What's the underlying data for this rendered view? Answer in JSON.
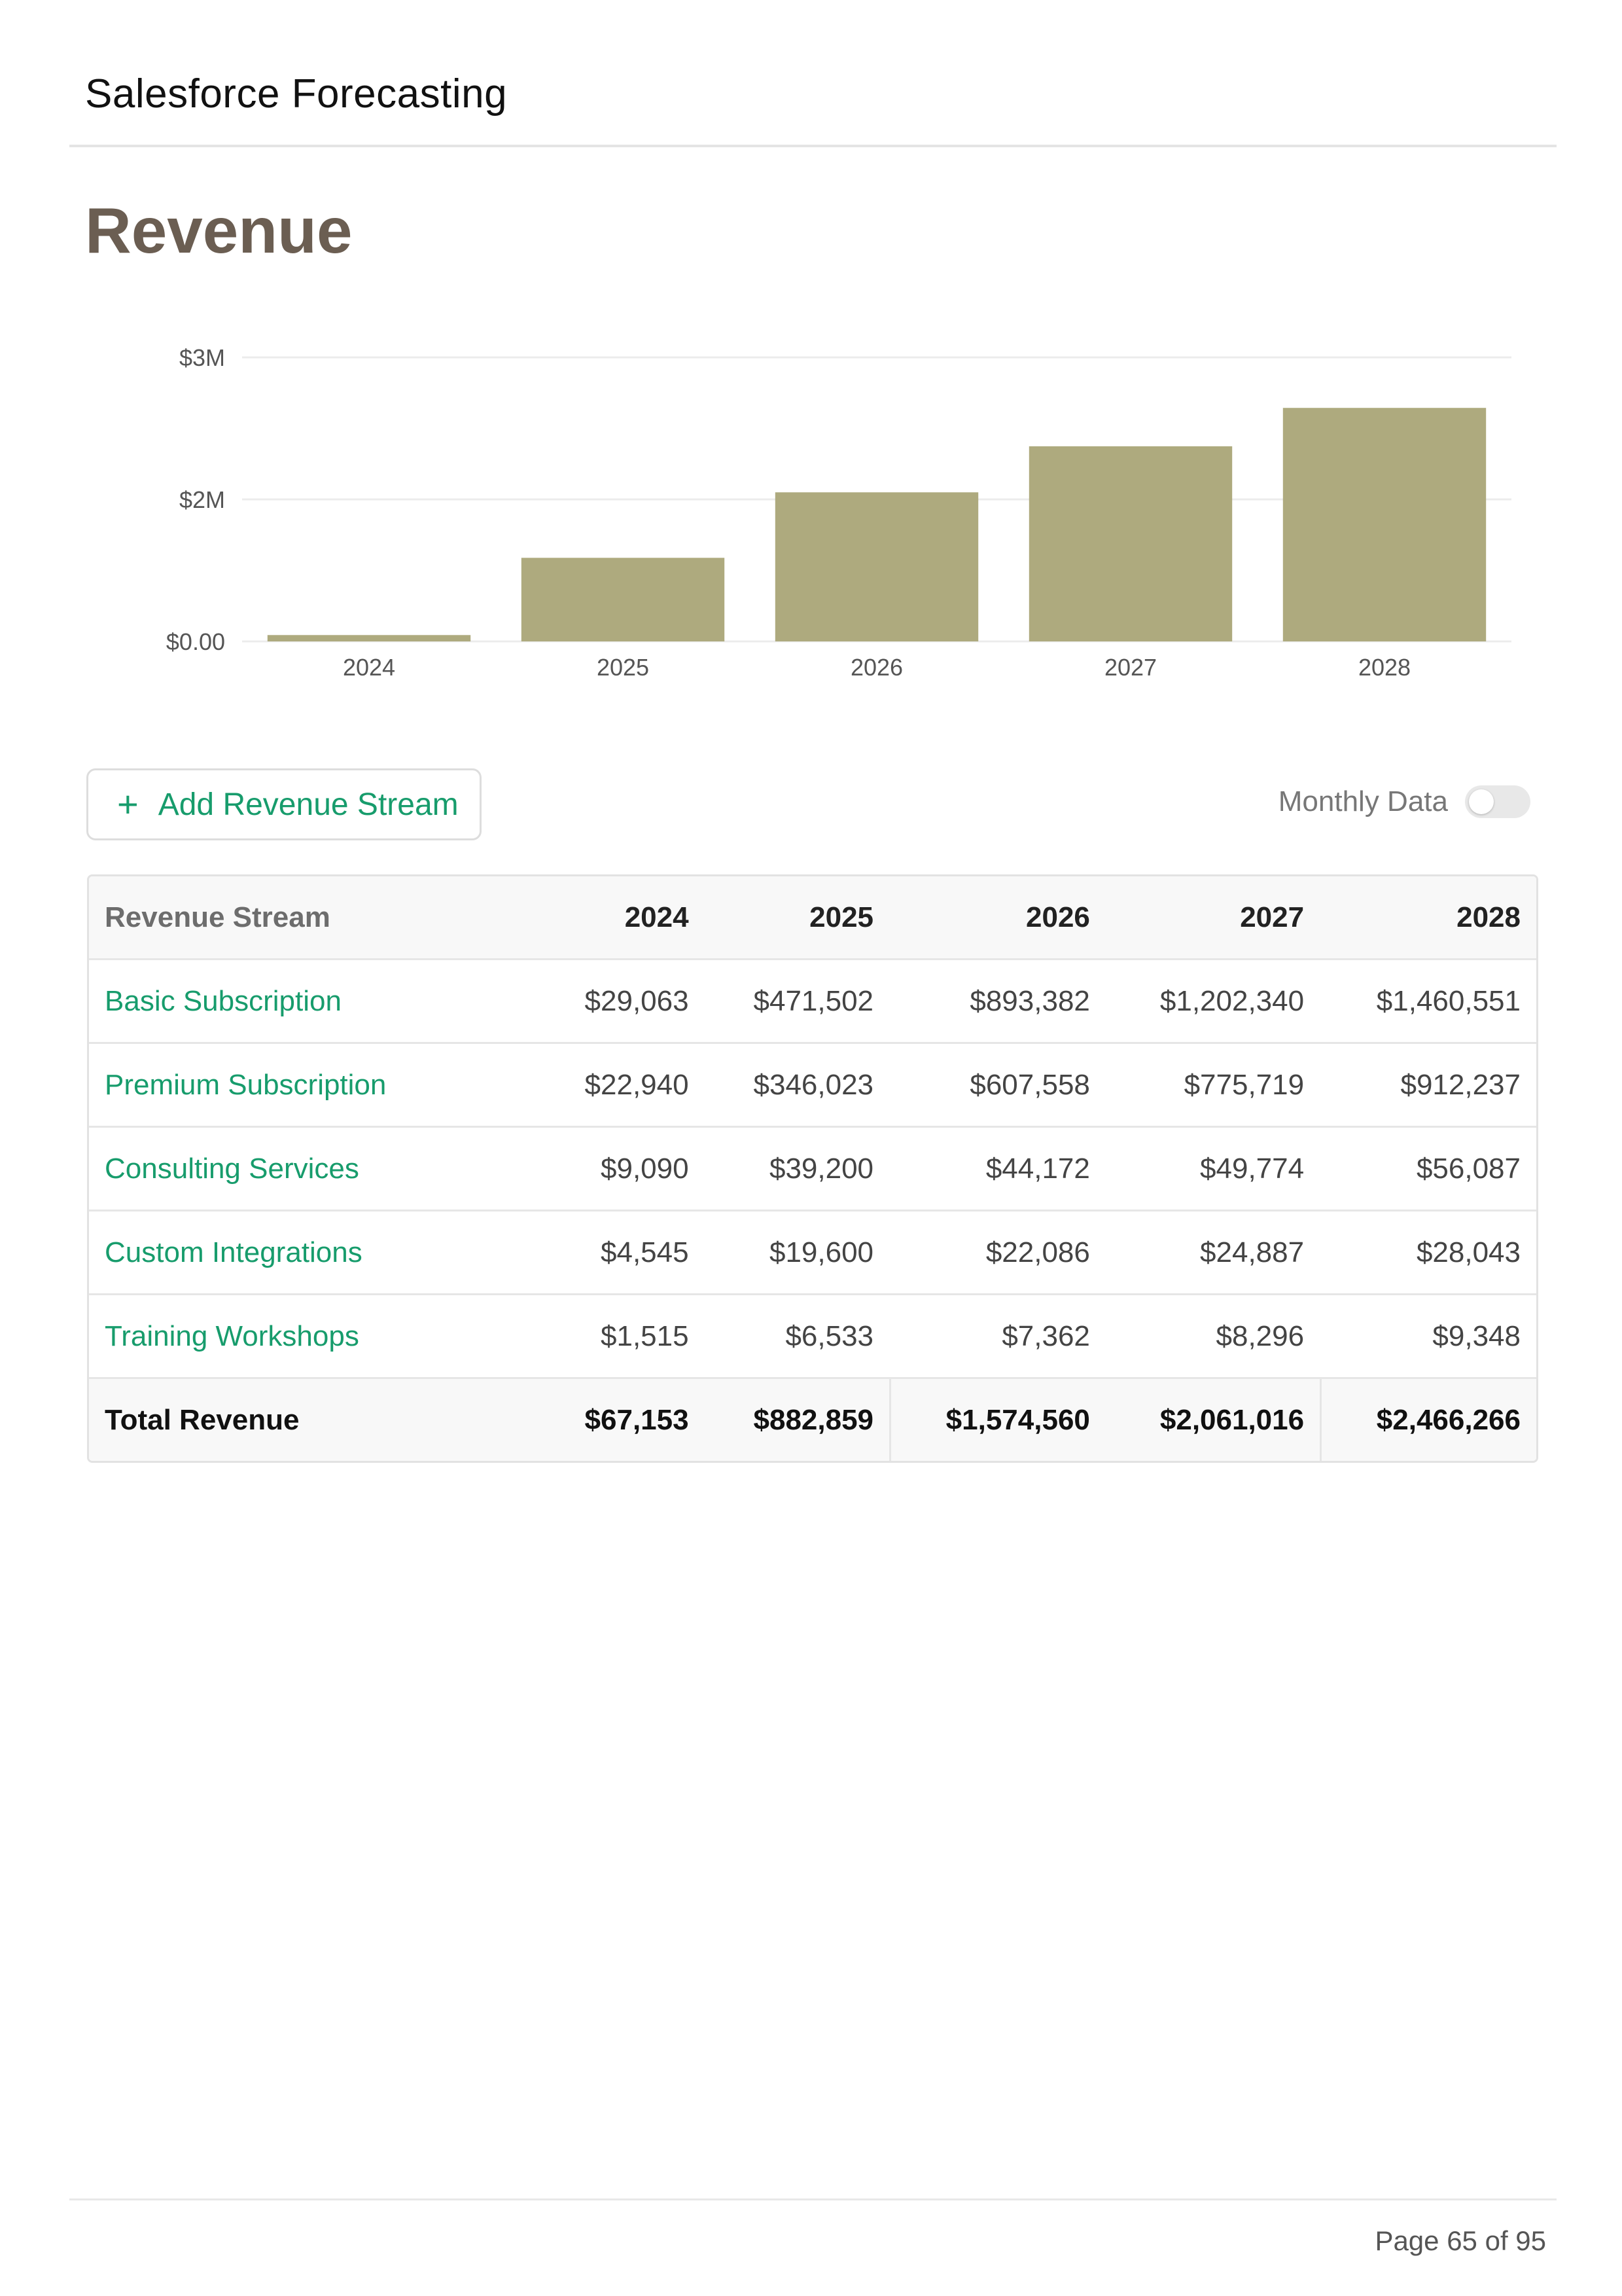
{
  "header": {
    "title": "Salesforce Forecasting"
  },
  "page": {
    "title": "Revenue",
    "page_number": "Page 65 of 95"
  },
  "colors": {
    "bar": "#aeaa7e",
    "accent_green": "#179c6c",
    "title_brown": "#6b5e52"
  },
  "chart_data": {
    "type": "bar",
    "categories": [
      "2024",
      "2025",
      "2026",
      "2027",
      "2028"
    ],
    "values": [
      67153,
      882859,
      1574560,
      2061016,
      2466266
    ],
    "y_ticks": [
      {
        "value": 0,
        "label": "$0.00"
      },
      {
        "value": 1500000,
        "label": "$2M"
      },
      {
        "value": 3000000,
        "label": "$3M"
      }
    ],
    "ylim": [
      0,
      3000000
    ],
    "grid": true,
    "legend": "none"
  },
  "controls": {
    "add_button_label": "Add Revenue Stream",
    "add_icon": "plus-icon",
    "toggle_label": "Monthly Data",
    "toggle_on": false
  },
  "table": {
    "headers": [
      "Revenue Stream",
      "2024",
      "2025",
      "2026",
      "2027",
      "2028"
    ],
    "rows": [
      {
        "name": "Basic Subscription",
        "values": [
          "$29,063",
          "$471,502",
          "$893,382",
          "$1,202,340",
          "$1,460,551"
        ]
      },
      {
        "name": "Premium Subscription",
        "values": [
          "$22,940",
          "$346,023",
          "$607,558",
          "$775,719",
          "$912,237"
        ]
      },
      {
        "name": "Consulting Services",
        "values": [
          "$9,090",
          "$39,200",
          "$44,172",
          "$49,774",
          "$56,087"
        ]
      },
      {
        "name": "Custom Integrations",
        "values": [
          "$4,545",
          "$19,600",
          "$22,086",
          "$24,887",
          "$28,043"
        ]
      },
      {
        "name": "Training Workshops",
        "values": [
          "$1,515",
          "$6,533",
          "$7,362",
          "$8,296",
          "$9,348"
        ]
      }
    ],
    "total": {
      "name": "Total Revenue",
      "values": [
        "$67,153",
        "$882,859",
        "$1,574,560",
        "$2,061,016",
        "$2,466,266"
      ]
    }
  }
}
